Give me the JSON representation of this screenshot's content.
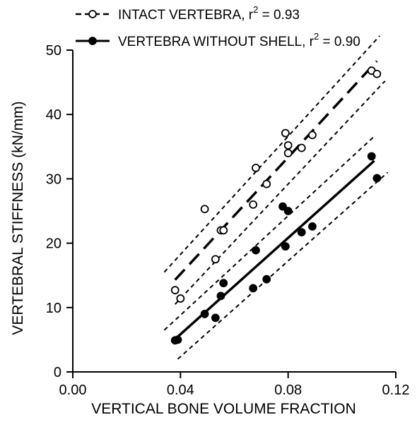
{
  "chart_data": {
    "type": "scatter",
    "xlabel": "VERTICAL BONE VOLUME FRACTION",
    "ylabel": "VERTEBRAL STIFFNESS (kN/mm)",
    "xlim": [
      0.0,
      0.12
    ],
    "ylim": [
      0,
      50
    ],
    "xticks": [
      0.0,
      0.04,
      0.08,
      0.12
    ],
    "xtick_labels": [
      "0.00",
      "0.04",
      "0.08",
      "0.12"
    ],
    "yticks": [
      0,
      10,
      20,
      30,
      40,
      50
    ],
    "ytick_labels": [
      "0",
      "10",
      "20",
      "30",
      "40",
      "50"
    ],
    "grid": false,
    "legend_position": "top",
    "series": [
      {
        "name": "INTACT VERTEBRA",
        "r2_label": "r",
        "r2_sup": "2",
        "r2_value": " = 0.93",
        "marker": "open-circle",
        "fit_line": "dashed",
        "color": "#000000",
        "points": [
          [
            0.038,
            12.7
          ],
          [
            0.04,
            11.4
          ],
          [
            0.049,
            25.3
          ],
          [
            0.053,
            17.5
          ],
          [
            0.055,
            22.0
          ],
          [
            0.056,
            22.0
          ],
          [
            0.067,
            26.0
          ],
          [
            0.068,
            31.7
          ],
          [
            0.072,
            29.2
          ],
          [
            0.079,
            37.1
          ],
          [
            0.08,
            34.0
          ],
          [
            0.08,
            35.2
          ],
          [
            0.085,
            34.8
          ],
          [
            0.089,
            36.8
          ],
          [
            0.111,
            46.8
          ],
          [
            0.113,
            46.3
          ]
        ],
        "fit": [
          [
            0.038,
            14.3
          ],
          [
            0.113,
            48.3
          ]
        ],
        "ci_upper": [
          [
            0.034,
            15.5
          ],
          [
            0.114,
            52.2
          ]
        ],
        "ci_lower": [
          [
            0.038,
            10.5
          ],
          [
            0.116,
            45.2
          ]
        ]
      },
      {
        "name": "VERTEBRA WITHOUT SHELL",
        "r2_label": "r",
        "r2_sup": "2",
        "r2_value": " = 0.90",
        "marker": "filled-circle",
        "fit_line": "solid",
        "color": "#000000",
        "points": [
          [
            0.038,
            4.9
          ],
          [
            0.039,
            5.0
          ],
          [
            0.049,
            9.0
          ],
          [
            0.053,
            8.4
          ],
          [
            0.055,
            11.8
          ],
          [
            0.056,
            13.8
          ],
          [
            0.067,
            13.0
          ],
          [
            0.068,
            18.9
          ],
          [
            0.072,
            14.4
          ],
          [
            0.078,
            25.7
          ],
          [
            0.079,
            19.5
          ],
          [
            0.08,
            25.0
          ],
          [
            0.085,
            21.7
          ],
          [
            0.089,
            22.6
          ],
          [
            0.111,
            33.5
          ],
          [
            0.113,
            30.1
          ]
        ],
        "fit": [
          [
            0.038,
            5.1
          ],
          [
            0.112,
            32.8
          ]
        ],
        "ci_upper": [
          [
            0.034,
            6.5
          ],
          [
            0.112,
            36.6
          ]
        ],
        "ci_lower": [
          [
            0.039,
            2.0
          ],
          [
            0.117,
            31.0
          ]
        ]
      }
    ]
  }
}
